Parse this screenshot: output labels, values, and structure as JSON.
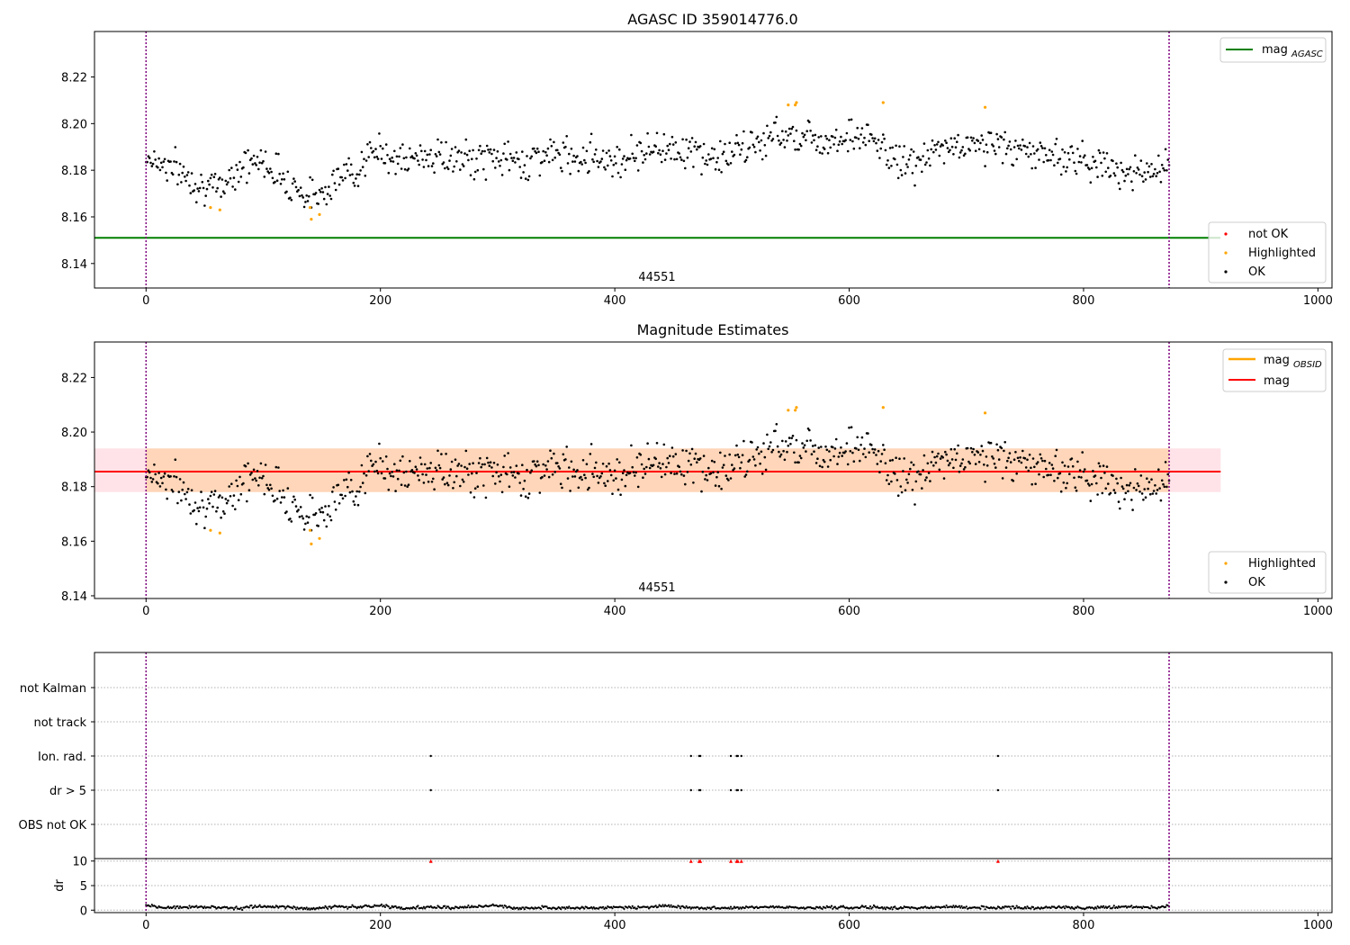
{
  "chart_data": [
    {
      "type": "scatter",
      "title": "AGASC ID 359014776.0",
      "xlim": [
        -44,
        1012
      ],
      "ylim": [
        8.1295,
        8.2395
      ],
      "x_ticks": [
        0,
        200,
        400,
        600,
        800,
        1000
      ],
      "y_ticks": [
        8.14,
        8.16,
        8.18,
        8.2,
        8.22
      ],
      "vlines": [
        0,
        873
      ],
      "vline_color": "#800080",
      "hlines": [
        {
          "name": "mag_AGASC",
          "y": 8.151,
          "color": "#008000"
        }
      ],
      "obsid_label": {
        "text": "44551",
        "x": 436
      },
      "legend_lines": [
        {
          "label": "mag",
          "sub": "AGASC",
          "color": "#008000"
        }
      ],
      "legend_points": [
        {
          "label": "not OK",
          "color": "#ff0000"
        },
        {
          "label": "Highlighted",
          "color": "#ffa500"
        },
        {
          "label": "OK",
          "color": "#000000"
        }
      ],
      "highlighted": {
        "x": [
          55,
          63,
          140,
          141,
          148,
          548,
          554,
          555,
          629,
          716
        ],
        "y": [
          8.164,
          8.163,
          8.164,
          8.159,
          8.161,
          8.208,
          8.208,
          8.209,
          8.209,
          8.207
        ]
      },
      "trend_ok": {
        "x": [
          0,
          20,
          40,
          60,
          80,
          100,
          120,
          140,
          160,
          180,
          200,
          220,
          240,
          260,
          280,
          300,
          320,
          340,
          360,
          380,
          400,
          420,
          440,
          460,
          480,
          500,
          520,
          540,
          560,
          580,
          600,
          620,
          640,
          660,
          680,
          700,
          720,
          740,
          760,
          780,
          800,
          820,
          840,
          860,
          873
        ],
        "y": [
          8.186,
          8.182,
          8.176,
          8.171,
          8.182,
          8.184,
          8.176,
          8.168,
          8.175,
          8.181,
          8.189,
          8.183,
          8.187,
          8.185,
          8.184,
          8.186,
          8.183,
          8.187,
          8.186,
          8.187,
          8.184,
          8.188,
          8.19,
          8.189,
          8.185,
          8.187,
          8.191,
          8.196,
          8.195,
          8.193,
          8.195,
          8.193,
          8.184,
          8.183,
          8.19,
          8.19,
          8.192,
          8.189,
          8.187,
          8.186,
          8.185,
          8.181,
          8.18,
          8.178,
          8.183
        ]
      }
    },
    {
      "type": "scatter",
      "title": "Magnitude Estimates",
      "xlim": [
        -44,
        1012
      ],
      "ylim": [
        8.139,
        8.233
      ],
      "x_ticks": [
        0,
        200,
        400,
        600,
        800,
        1000
      ],
      "y_ticks": [
        8.14,
        8.16,
        8.18,
        8.2,
        8.22
      ],
      "vlines": [
        0,
        873
      ],
      "vline_color": "#800080",
      "bands": [
        {
          "y_low": 8.178,
          "y_high": 8.194,
          "x_from": -44,
          "x_to": 917,
          "color": "#ffc0cb",
          "opacity": 0.45
        },
        {
          "y_low": 8.178,
          "y_high": 8.194,
          "x_from": 0,
          "x_to": 873,
          "color": "#ffa500",
          "opacity": 0.2
        }
      ],
      "hlines": [
        {
          "name": "mag_OBSID",
          "y": 8.1855,
          "x_from": 0,
          "x_to": 873,
          "color": "#ffa500"
        },
        {
          "name": "mag",
          "y": 8.1855,
          "x_from": -44,
          "x_to": 917,
          "color": "#ff0000"
        }
      ],
      "obsid_label": {
        "text": "44551",
        "x": 436
      },
      "legend_lines": [
        {
          "label": "mag",
          "sub": "OBSID",
          "color": "#ffa500"
        },
        {
          "label": "mag",
          "sub": "",
          "color": "#ff0000"
        }
      ],
      "legend_points": [
        {
          "label": "Highlighted",
          "color": "#ffa500"
        },
        {
          "label": "OK",
          "color": "#000000"
        }
      ],
      "highlighted": {
        "x": [
          55,
          63,
          140,
          141,
          148,
          548,
          554,
          555,
          629,
          716
        ],
        "y": [
          8.164,
          8.163,
          8.164,
          8.159,
          8.161,
          8.208,
          8.208,
          8.209,
          8.209,
          8.207
        ]
      },
      "trend_ok": {
        "x": [
          0,
          20,
          40,
          60,
          80,
          100,
          120,
          140,
          160,
          180,
          200,
          220,
          240,
          260,
          280,
          300,
          320,
          340,
          360,
          380,
          400,
          420,
          440,
          460,
          480,
          500,
          520,
          540,
          560,
          580,
          600,
          620,
          640,
          660,
          680,
          700,
          720,
          740,
          760,
          780,
          800,
          820,
          840,
          860,
          873
        ],
        "y": [
          8.186,
          8.182,
          8.176,
          8.171,
          8.182,
          8.184,
          8.176,
          8.168,
          8.175,
          8.181,
          8.189,
          8.183,
          8.187,
          8.185,
          8.184,
          8.186,
          8.183,
          8.187,
          8.186,
          8.187,
          8.184,
          8.188,
          8.19,
          8.189,
          8.185,
          8.187,
          8.191,
          8.196,
          8.195,
          8.193,
          8.195,
          8.193,
          8.184,
          8.183,
          8.19,
          8.19,
          8.192,
          8.189,
          8.187,
          8.186,
          8.185,
          8.181,
          8.18,
          8.178,
          8.183
        ]
      }
    },
    {
      "type": "scatter",
      "title": "",
      "xlim": [
        -44,
        1012
      ],
      "vlines": [
        0,
        873
      ],
      "vline_color": "#800080",
      "flag_categories": [
        "OBS not OK",
        "dr > 5",
        "Ion. rad.",
        "not track",
        "not Kalman"
      ],
      "flags": [
        {
          "category": "Ion. rad.",
          "x": [
            243,
            465,
            472,
            473,
            499,
            504,
            505,
            508,
            727
          ]
        },
        {
          "category": "dr > 5",
          "x": [
            243,
            465,
            472,
            473,
            499,
            504,
            505,
            508,
            727
          ]
        }
      ],
      "dr": {
        "ylabel": "dr",
        "ylim": [
          -0.5,
          10.5
        ],
        "y_ticks": [
          0,
          5,
          10
        ],
        "x_ticks": [
          0,
          200,
          400,
          600,
          800,
          1000
        ],
        "clip_value": 10,
        "clip_color": "#ff0000",
        "clipped_x": [
          243,
          465,
          472,
          473,
          499,
          504,
          505,
          508,
          727
        ],
        "baseline": {
          "x": [
            0,
            20,
            40,
            60,
            80,
            100,
            120,
            140,
            160,
            180,
            200,
            220,
            240,
            260,
            280,
            300,
            320,
            340,
            360,
            380,
            400,
            420,
            440,
            460,
            480,
            500,
            520,
            540,
            560,
            580,
            600,
            620,
            640,
            660,
            680,
            700,
            720,
            740,
            760,
            780,
            800,
            820,
            840,
            860,
            873
          ],
          "y": [
            0.8,
            0.5,
            0.7,
            0.6,
            0.4,
            0.8,
            0.6,
            0.3,
            0.7,
            0.6,
            0.9,
            0.4,
            0.6,
            0.5,
            0.7,
            0.9,
            0.3,
            0.6,
            0.5,
            0.4,
            0.6,
            0.5,
            0.9,
            0.6,
            0.4,
            0.5,
            0.6,
            0.7,
            0.4,
            0.6,
            0.5,
            0.6,
            0.4,
            0.5,
            0.7,
            0.6,
            0.5,
            0.6,
            0.4,
            0.6,
            0.5,
            0.6,
            0.7,
            0.5,
            0.8
          ]
        }
      }
    }
  ]
}
